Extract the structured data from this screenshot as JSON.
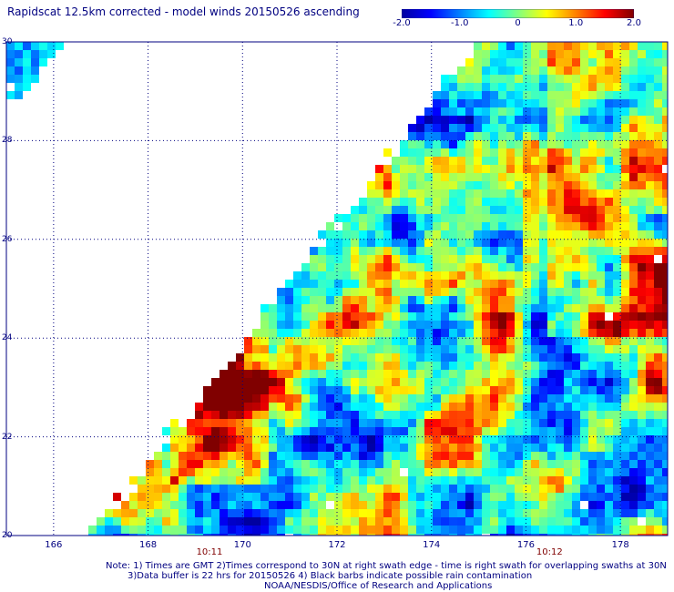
{
  "title": "Rapidscat 12.5km corrected - model winds 20150526 ascending",
  "colorbar": {
    "ticks": [
      {
        "label": "-2.0",
        "value": -2.0
      },
      {
        "label": "-1.0",
        "value": -1.0
      },
      {
        "label": "0",
        "value": 0.0
      },
      {
        "label": "1.0",
        "value": 1.0
      },
      {
        "label": "2.0",
        "value": 2.0
      }
    ],
    "colors": [
      "#0000a0",
      "#0000ff",
      "#0080ff",
      "#00ffff",
      "#80ff80",
      "#ffff00",
      "#ff8000",
      "#ff0000",
      "#800000"
    ]
  },
  "axes": {
    "lat_ticks": [
      "20",
      "22",
      "24",
      "26",
      "28",
      "30"
    ],
    "lon_ticks": [
      "166",
      "168",
      "170",
      "172",
      "174",
      "176",
      "178"
    ],
    "lat_range": [
      20,
      30
    ],
    "lon_range": [
      165,
      179
    ],
    "time_labels": [
      {
        "label": "10:11",
        "lon": 169.3
      },
      {
        "label": "10:12",
        "lon": 176.5
      }
    ]
  },
  "footer": {
    "note_line1": "Note: 1) Times are GMT 2)Times correspond to 30N at right swath edge - time is right swath for overlapping swaths at 30N",
    "note_line2": "3)Data buffer is 22 hrs for 20150526 4) Black barbs indicate possible rain contamination",
    "credit": "NOAA/NESDIS/Office of Research and Applications"
  },
  "chart_data": {
    "type": "heatmap",
    "title": "Rapidscat 12.5km corrected - model winds 20150526 ascending",
    "xlabel": "",
    "ylabel": "",
    "x_ticks": [
      166,
      168,
      170,
      172,
      174,
      176,
      178
    ],
    "y_ticks": [
      20,
      22,
      24,
      26,
      28,
      30
    ],
    "xlim": [
      165,
      179
    ],
    "ylim": [
      20,
      30
    ],
    "color_range": [
      -2.0,
      2.0
    ],
    "swath_edge": [
      {
        "lon": 166.8,
        "lat": 20.0
      },
      {
        "lon": 175.0,
        "lat": 30.0
      }
    ],
    "grid": true
  }
}
